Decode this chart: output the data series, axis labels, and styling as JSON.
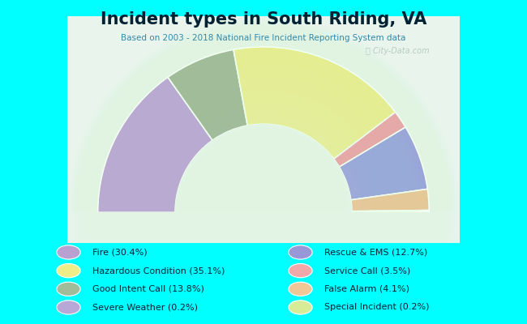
{
  "title": "Incident types in South Riding, VA",
  "subtitle": "Based on 2003 - 2018 National Fire Incident Reporting System data",
  "background_color": "#00FFFF",
  "segments": [
    {
      "label": "Fire",
      "pct": 30.4,
      "color": "#b8a0d0"
    },
    {
      "label": "Good Intent Call",
      "pct": 13.8,
      "color": "#a0bc98"
    },
    {
      "label": "Hazardous Condition",
      "pct": 35.1,
      "color": "#eeed88"
    },
    {
      "label": "Service Call",
      "pct": 3.5,
      "color": "#f0a8a8"
    },
    {
      "label": "Rescue & EMS",
      "pct": 12.7,
      "color": "#9898d8"
    },
    {
      "label": "False Alarm",
      "pct": 4.1,
      "color": "#f0c898"
    },
    {
      "label": "Severe Weather",
      "pct": 0.2,
      "color": "#b8a8d8"
    },
    {
      "label": "Special Incident",
      "pct": 0.2,
      "color": "#d8ec98"
    }
  ],
  "legend_colors": {
    "Fire": "#b8a0d0",
    "Hazardous Condition": "#eeed88",
    "Good Intent Call": "#a0bc98",
    "Severe Weather": "#b8a8d8",
    "Rescue & EMS": "#9898d8",
    "Service Call": "#f0a8a8",
    "False Alarm": "#f0c898",
    "Special Incident": "#d8ec98"
  },
  "legend_labels": {
    "Fire": "Fire (30.4%)",
    "Hazardous Condition": "Hazardous Condition (35.1%)",
    "Good Intent Call": "Good Intent Call (13.8%)",
    "Severe Weather": "Severe Weather (0.2%)",
    "Rescue & EMS": "Rescue & EMS (12.7%)",
    "Service Call": "Service Call (3.5%)",
    "False Alarm": "False Alarm (4.1%)",
    "Special Incident": "Special Incident (0.2%)"
  },
  "legend_col1": [
    "Fire",
    "Hazardous Condition",
    "Good Intent Call",
    "Severe Weather"
  ],
  "legend_col2": [
    "Rescue & EMS",
    "Service Call",
    "False Alarm",
    "Special Incident"
  ]
}
